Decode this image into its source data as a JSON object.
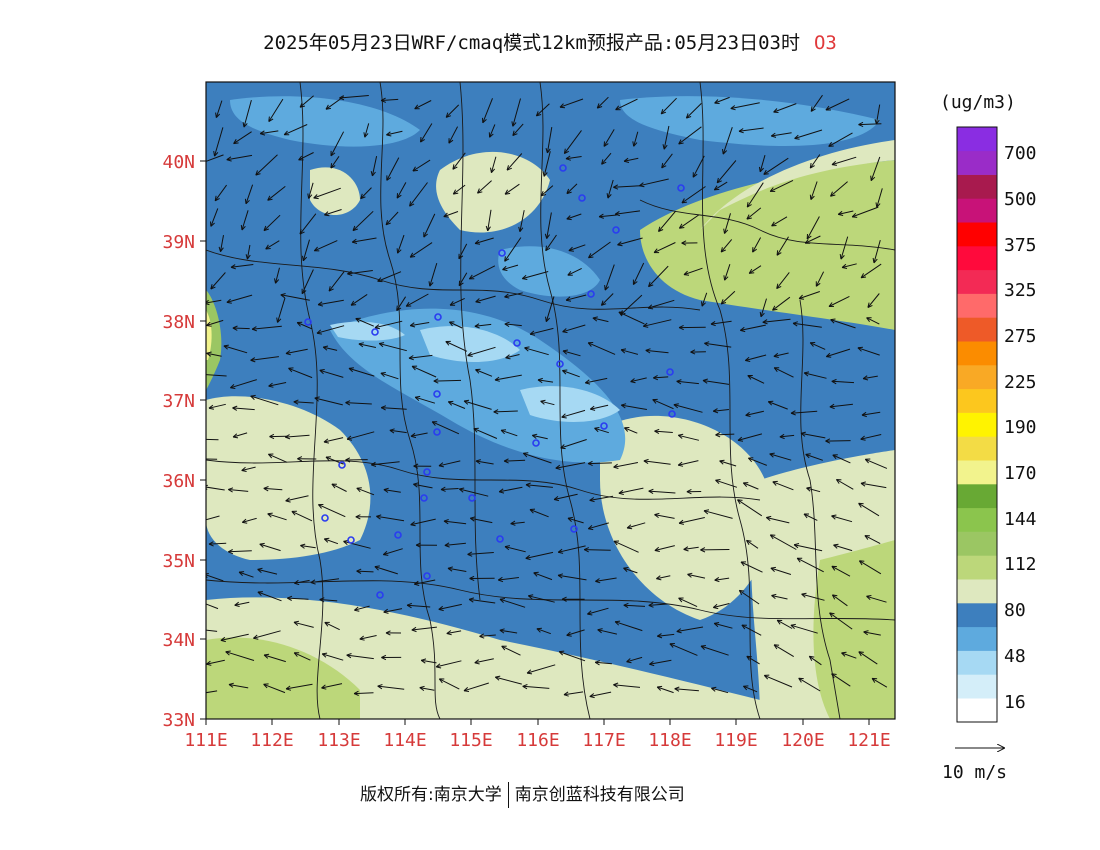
{
  "title": {
    "text": "2025年05月23日WRF/cmaq模式12km预报产品:05月23日03时",
    "species": "O3"
  },
  "map": {
    "lat_labels": [
      "40N",
      "39N",
      "38N",
      "37N",
      "36N",
      "35N",
      "34N",
      "33N"
    ],
    "lon_labels": [
      "111E",
      "112E",
      "113E",
      "114E",
      "115E",
      "116E",
      "117E",
      "118E",
      "119E",
      "120E",
      "121E"
    ],
    "lat_range": [
      33,
      41
    ],
    "lon_range": [
      111,
      121.4
    ],
    "wind_direction": "mostly from east / northeast",
    "station_marker": "blue-circle"
  },
  "legend": {
    "unit": "(ug/m3)",
    "colors": [
      "#ffffff",
      "#d4eef9",
      "#a6d9f3",
      "#5eaade",
      "#3d7fbe",
      "#dee8bf",
      "#bcd77a",
      "#9bc663",
      "#8bc54d",
      "#68a934",
      "#f2f38d",
      "#f3dc45",
      "#fff300",
      "#fcc71e",
      "#f9a925",
      "#fb8c00",
      "#ee5a28",
      "#ff6a6a",
      "#f32a55",
      "#ff0a3c",
      "#ff0000",
      "#c81278",
      "#a81a4e",
      "#9a2cc8",
      "#8a2de2"
    ],
    "labels": [
      "16",
      "48",
      "80",
      "112",
      "144",
      "170",
      "190",
      "225",
      "275",
      "325",
      "375",
      "500",
      "700"
    ]
  },
  "wind_scale": {
    "label": "10 m/s"
  },
  "copyright": {
    "left": "版权所有:南京大学",
    "right": "南京创蓝科技有限公司"
  }
}
